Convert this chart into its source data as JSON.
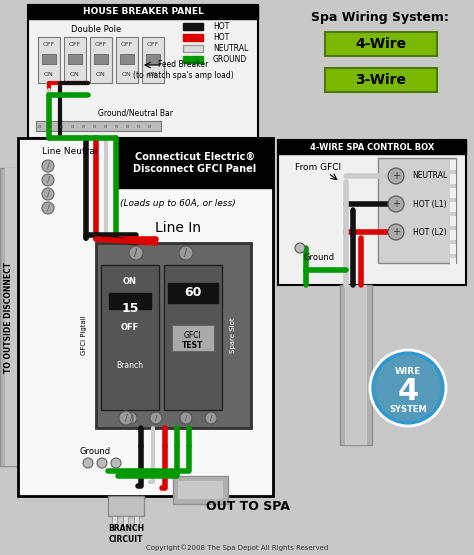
{
  "bg_color": "#c8c8c8",
  "title": "Spa Wiring System:",
  "wire_4_label": "4-Wire",
  "wire_3_label": "3-Wire",
  "button_color": "#7ab800",
  "button_border": "#4a7a00",
  "house_panel_title": "HOUSE BREAKER PANEL",
  "house_panel_subtitle": "Double Pole",
  "feed_breaker_text": "Feed Breaker\n(to match spa's amp load)",
  "ground_neutral_text": "Ground/Neutral Bar",
  "disconnect_title": "Connecticut Electric®\nDisconnect GFCI Panel",
  "disconnect_sub": "(Loads up to 60A, or less)",
  "line_in_text": "Line In",
  "line_neutral_text": "Line Neutral",
  "ground_text": "Ground",
  "branch_circuit_text": "BRANCH\nCIRCUIT",
  "out_to_spa_text": "OUT TO SPA",
  "to_outside_text": "TO OUTSIDE DISCONNECT",
  "spa_control_title": "4-WIRE SPA CONTROL BOX",
  "from_gfci_text": "From GFCI",
  "ground_label": "Ground",
  "neutral_label": "NEUTRAL",
  "hot_l1_label": "HOT (L1)",
  "hot_l2_label": "HOT (L2)",
  "wire_system_color": "#00bfff",
  "wire_system_bg": "#3399cc",
  "copyright_text": "Copyright©2008 The Spa Depot All Rights Reserved",
  "legend_hot_black": "HOT",
  "legend_hot_red": "HOT",
  "legend_neutral": "NEUTRAL",
  "legend_ground": "GROUND",
  "panel_bg": "#ffffff",
  "main_panel_bg": "#ffffff",
  "wire_red": "#dd0000",
  "wire_black": "#111111",
  "wire_green": "#009900",
  "wire_white": "#cccccc",
  "wire_gray": "#888888",
  "gray_conduit": "#b0b0b0",
  "gray_conduit_dark": "#909090",
  "gfci_box_color": "#666666",
  "breaker_color": "#555555"
}
